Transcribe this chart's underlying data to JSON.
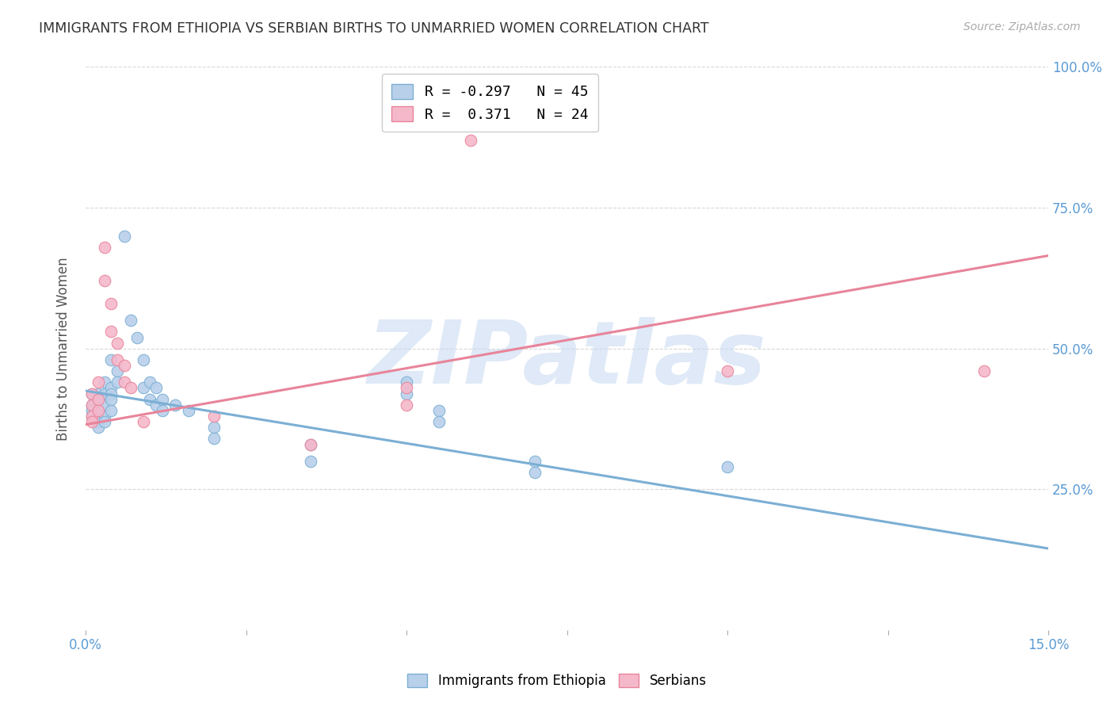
{
  "title": "IMMIGRANTS FROM ETHIOPIA VS SERBIAN BIRTHS TO UNMARRIED WOMEN CORRELATION CHART",
  "source": "Source: ZipAtlas.com",
  "ylabel": "Births to Unmarried Women",
  "xlim": [
    0.0,
    0.15
  ],
  "ylim": [
    0.0,
    1.0
  ],
  "xticks": [
    0.0,
    0.025,
    0.05,
    0.075,
    0.1,
    0.125,
    0.15
  ],
  "xticklabels": [
    "0.0%",
    "",
    "",
    "",
    "",
    "",
    "15.0%"
  ],
  "yticks": [
    0.0,
    0.25,
    0.5,
    0.75,
    1.0
  ],
  "yticklabels_right": [
    "",
    "25.0%",
    "50.0%",
    "75.0%",
    "100.0%"
  ],
  "legend_label_blue": "Immigrants from Ethiopia",
  "legend_label_pink": "Serbians",
  "legend_r_blue": "R = -0.297",
  "legend_n_blue": "N = 45",
  "legend_r_pink": "R =  0.371",
  "legend_n_pink": "N = 24",
  "blue_scatter": [
    [
      0.001,
      0.42
    ],
    [
      0.001,
      0.4
    ],
    [
      0.001,
      0.39
    ],
    [
      0.001,
      0.38
    ],
    [
      0.002,
      0.42
    ],
    [
      0.002,
      0.41
    ],
    [
      0.002,
      0.39
    ],
    [
      0.002,
      0.37
    ],
    [
      0.002,
      0.36
    ],
    [
      0.003,
      0.44
    ],
    [
      0.003,
      0.42
    ],
    [
      0.003,
      0.4
    ],
    [
      0.003,
      0.38
    ],
    [
      0.003,
      0.37
    ],
    [
      0.004,
      0.48
    ],
    [
      0.004,
      0.43
    ],
    [
      0.004,
      0.42
    ],
    [
      0.004,
      0.41
    ],
    [
      0.004,
      0.39
    ],
    [
      0.005,
      0.46
    ],
    [
      0.005,
      0.44
    ],
    [
      0.006,
      0.7
    ],
    [
      0.007,
      0.55
    ],
    [
      0.008,
      0.52
    ],
    [
      0.009,
      0.48
    ],
    [
      0.009,
      0.43
    ],
    [
      0.01,
      0.44
    ],
    [
      0.01,
      0.41
    ],
    [
      0.011,
      0.43
    ],
    [
      0.011,
      0.4
    ],
    [
      0.012,
      0.41
    ],
    [
      0.012,
      0.39
    ],
    [
      0.014,
      0.4
    ],
    [
      0.016,
      0.39
    ],
    [
      0.02,
      0.36
    ],
    [
      0.02,
      0.34
    ],
    [
      0.035,
      0.33
    ],
    [
      0.035,
      0.3
    ],
    [
      0.05,
      0.44
    ],
    [
      0.05,
      0.42
    ],
    [
      0.055,
      0.39
    ],
    [
      0.055,
      0.37
    ],
    [
      0.07,
      0.3
    ],
    [
      0.07,
      0.28
    ],
    [
      0.1,
      0.29
    ]
  ],
  "pink_scatter": [
    [
      0.001,
      0.42
    ],
    [
      0.001,
      0.4
    ],
    [
      0.001,
      0.38
    ],
    [
      0.001,
      0.37
    ],
    [
      0.002,
      0.44
    ],
    [
      0.002,
      0.41
    ],
    [
      0.002,
      0.39
    ],
    [
      0.003,
      0.68
    ],
    [
      0.003,
      0.62
    ],
    [
      0.004,
      0.58
    ],
    [
      0.004,
      0.53
    ],
    [
      0.005,
      0.51
    ],
    [
      0.005,
      0.48
    ],
    [
      0.006,
      0.47
    ],
    [
      0.006,
      0.44
    ],
    [
      0.007,
      0.43
    ],
    [
      0.009,
      0.37
    ],
    [
      0.02,
      0.38
    ],
    [
      0.035,
      0.33
    ],
    [
      0.05,
      0.43
    ],
    [
      0.05,
      0.4
    ],
    [
      0.06,
      0.87
    ],
    [
      0.1,
      0.46
    ],
    [
      0.14,
      0.46
    ]
  ],
  "blue_line": [
    [
      0.0,
      0.425
    ],
    [
      0.15,
      0.145
    ]
  ],
  "pink_line": [
    [
      0.0,
      0.365
    ],
    [
      0.15,
      0.665
    ]
  ],
  "dot_size": 110,
  "blue_color": "#b8d0ea",
  "pink_color": "#f5b8cb",
  "blue_edge": "#7bafd4",
  "pink_edge": "#e8849a",
  "watermark": "ZIPatlas",
  "watermark_color": "#c5d8f2",
  "background_color": "#ffffff",
  "grid_color": "#d8d8d8",
  "title_color": "#333333",
  "axis_color": "#aaaaaa",
  "right_ytick_color": "#5b9bd5"
}
